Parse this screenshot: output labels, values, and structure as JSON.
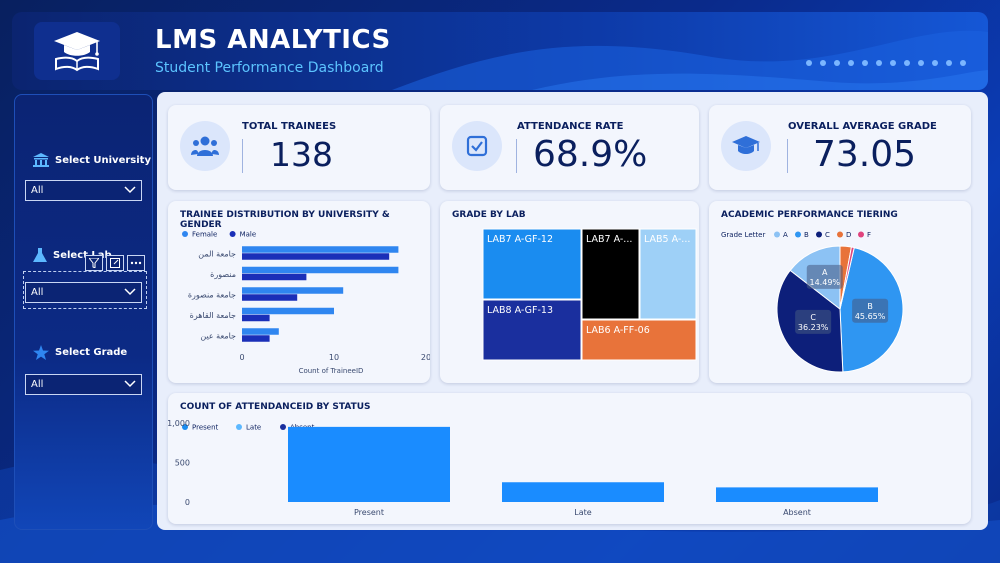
{
  "header": {
    "title": "LMS ANALYTICS",
    "subtitle": "Student Performance Dashboard"
  },
  "filters": {
    "university": {
      "label": "Select University",
      "value": "All"
    },
    "lab": {
      "label": "Select Lab",
      "value": "All"
    },
    "grade": {
      "label": "Select Grade",
      "value": "All"
    }
  },
  "kpis": {
    "trainees": {
      "title": "TOTAL TRAINEES",
      "value": "138"
    },
    "attendance": {
      "title": "ATTENDANCE RATE",
      "value": "68.9%"
    },
    "grade": {
      "title": "OVERALL AVERAGE GRADE",
      "value": "73.05"
    }
  },
  "colors": {
    "female": "#2f86f0",
    "male": "#1a2fb8",
    "accent": "#1a8cff"
  },
  "chart_data": [
    {
      "type": "bar",
      "orientation": "horizontal",
      "title": "TRAINEE DISTRIBUTION BY UNIVERSITY & GENDER",
      "categories": [
        "جامعة المن",
        "منصورة",
        "جامعة منصورة",
        "جامعة القاهرة",
        "جامعة عين"
      ],
      "series": [
        {
          "name": "Female",
          "values": [
            17,
            17,
            11,
            10,
            4
          ]
        },
        {
          "name": "Male",
          "values": [
            16,
            7,
            6,
            3,
            3
          ]
        }
      ],
      "xlabel": "Count of TraineeID",
      "xticks": [
        "0",
        "10",
        "20"
      ],
      "xlim": [
        0,
        20
      ]
    },
    {
      "type": "treemap",
      "title": "GRADE BY LAB",
      "cells": [
        {
          "label": "LAB7 A-GF-12",
          "color": "#1a8cf0"
        },
        {
          "label": "LAB8 A-GF-13",
          "color": "#1a2f9e"
        },
        {
          "label": "LAB7 A-...",
          "color": "#000000"
        },
        {
          "label": "LAB6 A-FF-06",
          "color": "#e8733a"
        },
        {
          "label": "LAB5 A-...",
          "color": "#9ed0f7"
        }
      ]
    },
    {
      "type": "pie",
      "title": "ACADEMIC PERFORMANCE TIERING",
      "legend_title": "Grade Letter",
      "slices": [
        {
          "label": "A",
          "value": 14.49,
          "text": "14.49%",
          "color": "#8cc2f4"
        },
        {
          "label": "B",
          "value": 45.65,
          "text": "45.65%",
          "color": "#2f96f2"
        },
        {
          "label": "C",
          "value": 36.23,
          "text": "36.23%",
          "color": "#0d1f7a"
        },
        {
          "label": "D",
          "value": 2.9,
          "text": "",
          "color": "#e8733a"
        },
        {
          "label": "F",
          "value": 0.73,
          "text": "",
          "color": "#e0447e"
        }
      ]
    },
    {
      "type": "bar",
      "title": "COUNT OF ATTENDANCEID BY STATUS",
      "categories": [
        "Present",
        "Late",
        "Absent"
      ],
      "values": [
        951,
        250,
        185
      ],
      "legend": [
        "Present",
        "Late",
        "Absent"
      ],
      "legend_colors": [
        "#1a8cf0",
        "#5cb8ff",
        "#1a2f9e"
      ],
      "yticks": [
        "0",
        "500",
        "1,000"
      ],
      "ylim": [
        0,
        1000
      ]
    }
  ]
}
